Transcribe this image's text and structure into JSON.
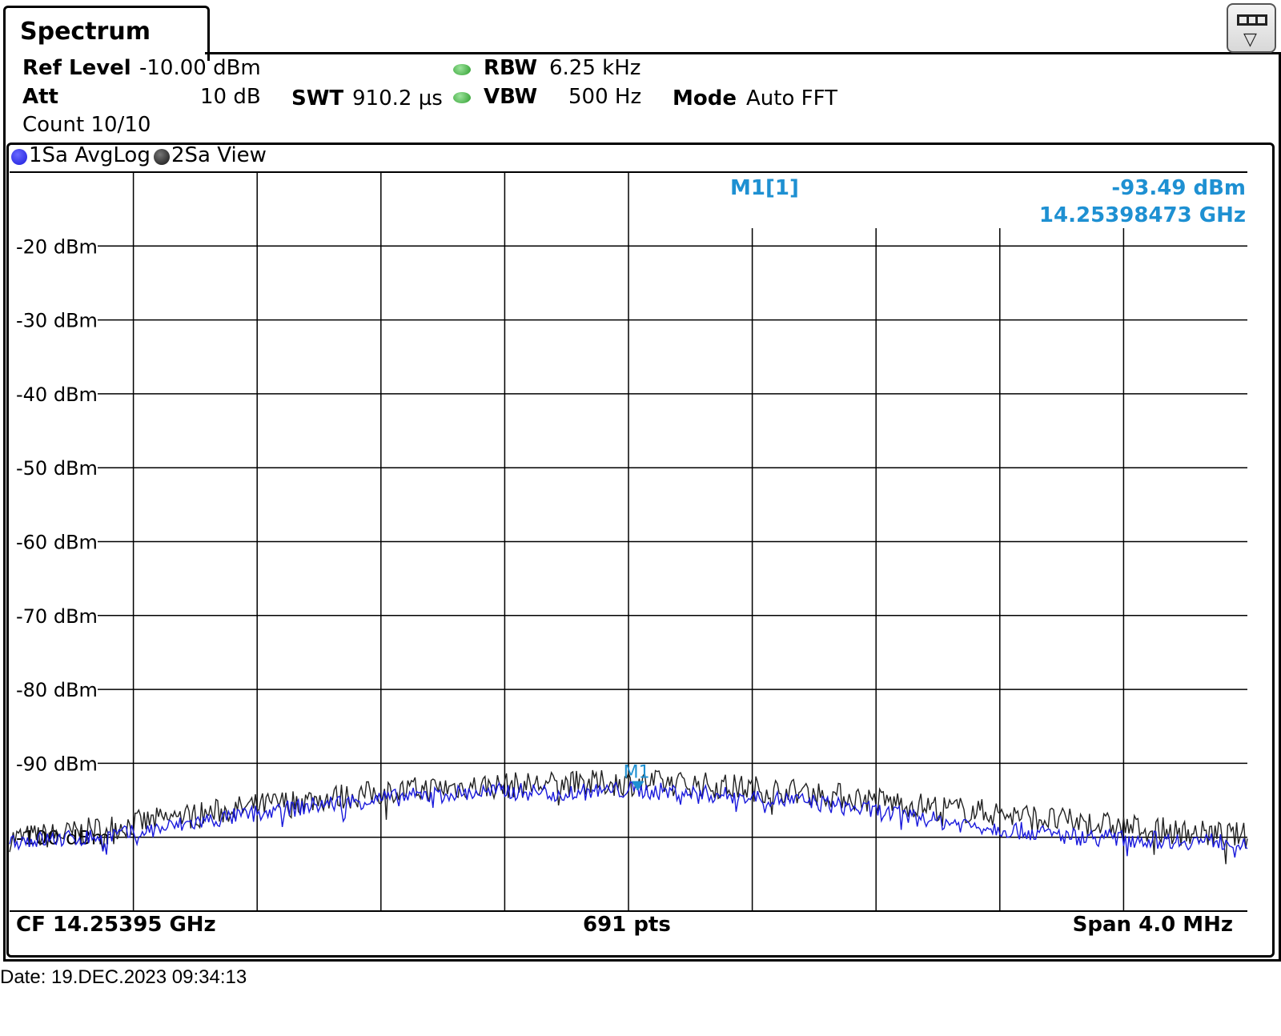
{
  "window": {
    "tab_title": "Spectrum"
  },
  "settings": {
    "ref_level_label": "Ref Level",
    "ref_level_value": "-10.00 dBm",
    "att_label": "Att",
    "att_value": "10 dB",
    "count_text": "Count 10/10",
    "swt_label": "SWT",
    "swt_value": "910.2 µs",
    "rbw_label": "RBW",
    "rbw_value": "6.25 kHz",
    "vbw_label": "VBW",
    "vbw_value": "500 Hz",
    "mode_label": "Mode",
    "mode_value": "Auto FFT"
  },
  "traces": [
    {
      "label": "1Sa AvgLog",
      "color": "#1a1adc"
    },
    {
      "label": "2Sa View",
      "color": "#222222"
    }
  ],
  "marker": {
    "name": "M1",
    "readout_label": "M1[1]",
    "level": "-93.49 dBm",
    "freq": "14.25398473 GHz",
    "color": "#1e90d2"
  },
  "footer": {
    "cf": "CF 14.25395 GHz",
    "points": "691 pts",
    "span": "Span 4.0 MHz"
  },
  "date": "Date: 19.DEC.2023  09:34:13",
  "chart_data": {
    "type": "line",
    "ylabel_unit": "dBm",
    "y_ticks": [
      -20,
      -30,
      -40,
      -50,
      -60,
      -70,
      -80,
      -90,
      -100
    ],
    "y_tick_labels": [
      "-20 dBm",
      "-30 dBm",
      "-40 dBm",
      "-50 dBm",
      "-60 dBm",
      "-70 dBm",
      "-80 dBm",
      "-90 dBm",
      "-100 dBm"
    ],
    "ylim": [
      -110,
      -10
    ],
    "x_divisions": 10,
    "center_freq_ghz": 14.25395,
    "span_mhz": 4.0,
    "points": 691,
    "grid": true,
    "series": [
      {
        "name": "1Sa AvgLog",
        "color": "#1a1adc",
        "x_mhz_offset": [
          -2.0,
          -1.8,
          -1.6,
          -1.4,
          -1.2,
          -1.0,
          -0.8,
          -0.6,
          -0.4,
          -0.2,
          0.0,
          0.2,
          0.4,
          0.6,
          0.8,
          1.0,
          1.2,
          1.4,
          1.6,
          1.8,
          2.0
        ],
        "y_dbm": [
          -100.5,
          -100.2,
          -99.5,
          -98.0,
          -96.8,
          -95.6,
          -94.8,
          -94.2,
          -93.8,
          -94.0,
          -93.6,
          -94.0,
          -94.6,
          -95.3,
          -96.5,
          -97.8,
          -98.8,
          -99.8,
          -100.2,
          -100.5,
          -100.6
        ]
      },
      {
        "name": "2Sa View",
        "color": "#222222",
        "x_mhz_offset": [
          -2.0,
          -1.8,
          -1.6,
          -1.4,
          -1.2,
          -1.0,
          -0.8,
          -0.6,
          -0.4,
          -0.2,
          0.0,
          0.2,
          0.4,
          0.6,
          0.8,
          1.0,
          1.2,
          1.4,
          1.6,
          1.8,
          2.0
        ],
        "y_dbm": [
          -100.2,
          -99.5,
          -98.2,
          -97.0,
          -95.8,
          -94.8,
          -94.0,
          -93.3,
          -93.0,
          -92.8,
          -92.6,
          -92.8,
          -93.4,
          -94.0,
          -95.0,
          -96.0,
          -96.8,
          -97.8,
          -98.6,
          -99.4,
          -99.8
        ]
      }
    ]
  }
}
